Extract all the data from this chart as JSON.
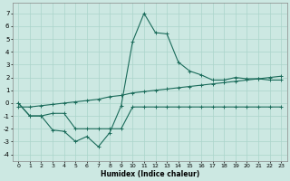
{
  "xlabel": "Humidex (Indice chaleur)",
  "background_color": "#cce8e2",
  "grid_color": "#aad4ca",
  "line_color": "#1a6b5a",
  "xlim": [
    -0.5,
    23.5
  ],
  "ylim": [
    -4.5,
    7.8
  ],
  "xticks": [
    0,
    1,
    2,
    3,
    4,
    5,
    6,
    7,
    8,
    9,
    10,
    11,
    12,
    13,
    14,
    15,
    16,
    17,
    18,
    19,
    20,
    21,
    22,
    23
  ],
  "yticks": [
    -4,
    -3,
    -2,
    -1,
    0,
    1,
    2,
    3,
    4,
    5,
    6,
    7
  ],
  "line1_x": [
    0,
    1,
    2,
    3,
    4,
    5,
    6,
    7,
    8,
    9,
    10,
    11,
    12,
    13,
    14,
    15,
    16,
    17,
    18,
    19,
    20,
    21,
    22,
    23
  ],
  "line1_y": [
    0.0,
    -1.0,
    -1.0,
    -0.8,
    -0.8,
    -2.0,
    -2.0,
    -2.0,
    -2.0,
    -2.0,
    -0.3,
    -0.3,
    -0.3,
    -0.3,
    -0.3,
    -0.3,
    -0.3,
    -0.3,
    -0.3,
    -0.3,
    -0.3,
    -0.3,
    -0.3,
    -0.3
  ],
  "line2_x": [
    0,
    1,
    2,
    3,
    4,
    5,
    6,
    7,
    8,
    9,
    10,
    11,
    12,
    13,
    14,
    15,
    16,
    17,
    18,
    19,
    20,
    21,
    22,
    23
  ],
  "line2_y": [
    0.0,
    -1.0,
    -1.0,
    -2.1,
    -2.2,
    -3.0,
    -2.6,
    -3.4,
    -2.3,
    -0.2,
    4.8,
    7.0,
    5.5,
    5.4,
    3.2,
    2.5,
    2.2,
    1.8,
    1.8,
    2.0,
    1.9,
    1.9,
    1.8,
    1.8
  ],
  "line3_x": [
    0,
    1,
    2,
    3,
    4,
    5,
    6,
    7,
    8,
    9,
    10,
    11,
    12,
    13,
    14,
    15,
    16,
    17,
    18,
    19,
    20,
    21,
    22,
    23
  ],
  "line3_y": [
    -0.3,
    -0.3,
    -0.2,
    -0.1,
    0.0,
    0.1,
    0.2,
    0.3,
    0.5,
    0.6,
    0.8,
    0.9,
    1.0,
    1.1,
    1.2,
    1.3,
    1.4,
    1.5,
    1.6,
    1.7,
    1.8,
    1.9,
    2.0,
    2.1
  ]
}
